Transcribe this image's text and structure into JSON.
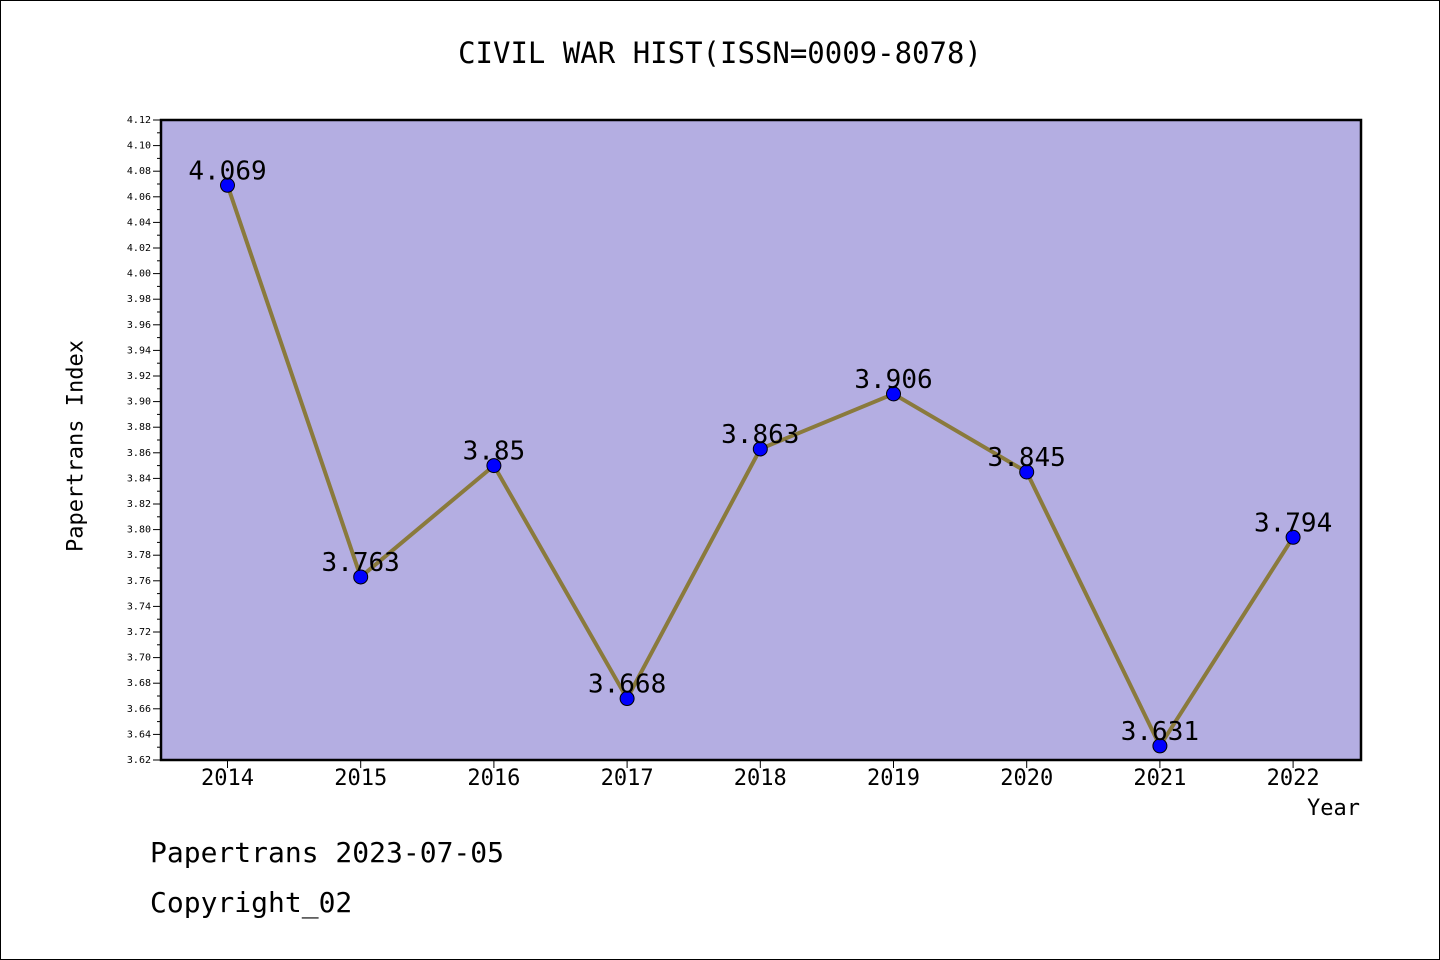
{
  "title": "CIVIL WAR HIST(ISSN=0009-8078)",
  "footer": {
    "line1": "Papertrans 2023-07-05",
    "line2": "Copyright_02"
  },
  "chart_data": {
    "type": "line",
    "title": "CIVIL WAR HIST(ISSN=0009-8078)",
    "xlabel": "Year",
    "ylabel": "Papertrans Index",
    "categories": [
      "2014",
      "2015",
      "2016",
      "2017",
      "2018",
      "2019",
      "2020",
      "2021",
      "2022"
    ],
    "series": [
      {
        "values": [
          4.069,
          3.763,
          3.85,
          3.668,
          3.863,
          3.906,
          3.845,
          3.631,
          3.794
        ],
        "data_labels": [
          "4.069",
          "3.763",
          "3.85",
          "3.668",
          "3.863",
          "3.906",
          "3.845",
          "3.631",
          "3.794"
        ]
      }
    ],
    "ylim": [
      3.62,
      4.12
    ],
    "yticks": [
      "3.62",
      "3.64",
      "3.66",
      "3.68",
      "3.70",
      "3.72",
      "3.74",
      "3.76",
      "3.78",
      "3.80",
      "3.82",
      "3.84",
      "3.86",
      "3.88",
      "3.90",
      "3.92",
      "3.94",
      "3.96",
      "3.98",
      "4.00",
      "4.02",
      "4.04",
      "4.06",
      "4.08",
      "4.10",
      "4.12"
    ],
    "grid": false,
    "colors": {
      "plot_background": "#b4aee2",
      "line": "#8a7a3c",
      "marker": "#0000ff"
    }
  }
}
